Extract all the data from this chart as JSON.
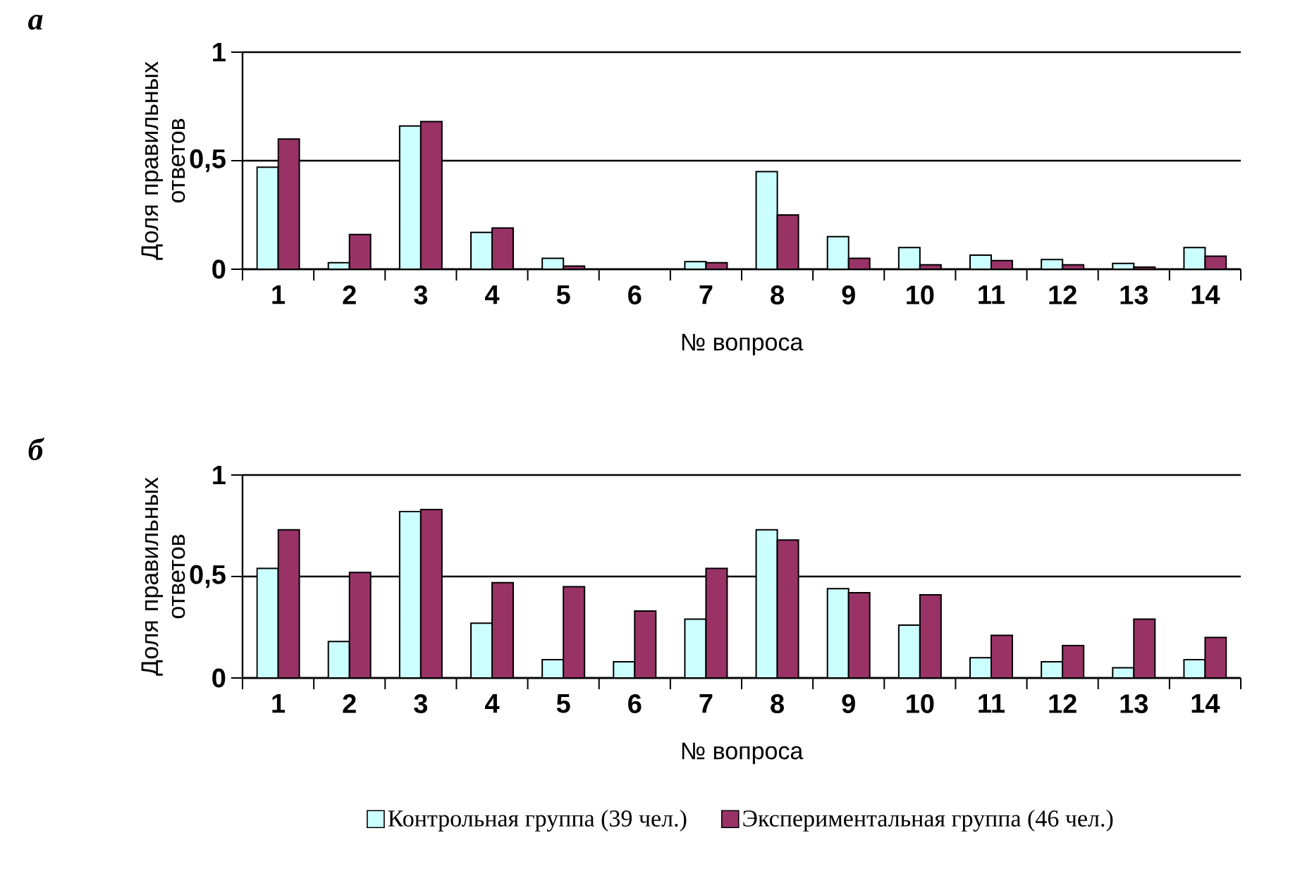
{
  "chart_data": [
    {
      "type": "bar",
      "title": "а",
      "xlabel": "№ вопроса",
      "ylabel": "Доля правильных ответов",
      "categories": [
        "1",
        "2",
        "3",
        "4",
        "5",
        "6",
        "7",
        "8",
        "9",
        "10",
        "11",
        "12",
        "13",
        "14"
      ],
      "series": [
        {
          "color": "#ccffff",
          "values": [
            0.47,
            0.03,
            0.66,
            0.17,
            0.05,
            null,
            0.035,
            0.45,
            0.15,
            0.1,
            0.065,
            0.045,
            0.027,
            0.1
          ]
        },
        {
          "color": "#993366",
          "values": [
            0.6,
            0.16,
            0.68,
            0.19,
            0.015,
            null,
            0.03,
            0.25,
            0.05,
            0.02,
            0.04,
            0.02,
            0.01,
            0.06
          ]
        }
      ],
      "ylim": [
        0,
        1
      ],
      "yticks": [
        0,
        {
          "value": 0.5,
          "label": "0,5"
        },
        1
      ],
      "grid": "y"
    },
    {
      "type": "bar",
      "title": "б",
      "xlabel": "№ вопроса",
      "ylabel": "Доля правильных ответов",
      "categories": [
        "1",
        "2",
        "3",
        "4",
        "5",
        "6",
        "7",
        "8",
        "9",
        "10",
        "11",
        "12",
        "13",
        "14"
      ],
      "series": [
        {
          "name": "Контрольная группа (39 чел.)",
          "color": "#ccffff",
          "values": [
            0.54,
            0.18,
            0.82,
            0.27,
            0.09,
            0.08,
            0.29,
            0.73,
            0.44,
            0.26,
            0.1,
            0.08,
            0.05,
            0.09
          ]
        },
        {
          "name": "Экспериментальная группа (46 чел.)",
          "color": "#993366",
          "values": [
            0.73,
            0.52,
            0.83,
            0.47,
            0.45,
            0.33,
            0.54,
            0.68,
            0.42,
            0.41,
            0.21,
            0.16,
            0.29,
            0.2
          ]
        }
      ],
      "ylim": [
        0,
        1
      ],
      "yticks": [
        0,
        {
          "value": 0.5,
          "label": "0,5"
        },
        1
      ],
      "grid": "y",
      "legend": "bottom"
    }
  ]
}
